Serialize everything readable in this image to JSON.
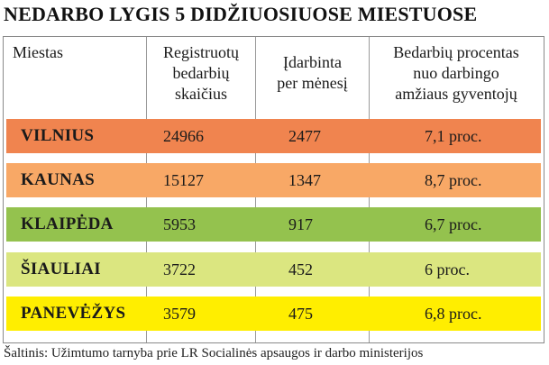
{
  "title": "NEDARBO LYGIS 5 DIDŽIUOSIUOSE MIESTUOSE",
  "headers": {
    "city": "Miestas",
    "registered": [
      "Registruotų",
      "bedarbių",
      "skaičius"
    ],
    "employed": [
      "Įdarbinta",
      "per mėnesį"
    ],
    "percent": [
      "Bedarbių procentas",
      "nuo darbingo",
      "amžiaus gyventojų"
    ]
  },
  "rows": [
    {
      "city": "VILNIUS",
      "registered": "24966",
      "employed": "2477",
      "percent": "7,1 proc.",
      "color": "#f0844f"
    },
    {
      "city": "KAUNAS",
      "registered": "15127",
      "employed": "1347",
      "percent": "8,7 proc.",
      "color": "#f8a866"
    },
    {
      "city": "KLAIPĖDA",
      "registered": "5953",
      "employed": "917",
      "percent": "6,7 proc.",
      "color": "#94c24e"
    },
    {
      "city": "ŠIAULIAI",
      "registered": "3722",
      "employed": "452",
      "percent": "6 proc.",
      "color": "#dbe680"
    },
    {
      "city": "PANEVĖŽYS",
      "registered": "3579",
      "employed": "475",
      "percent": "6,8 proc.",
      "color": "#ffee00"
    }
  ],
  "source": "Šaltinis: Užimtumo tarnyba prie LR Socialinės apsaugos ir darbo ministerijos",
  "chart_data": {
    "type": "table",
    "title": "NEDARBO LYGIS 5 DIDŽIUOSIUOSE MIESTUOSE",
    "columns": [
      "Miestas",
      "Registruotų bedarbių skaičius",
      "Įdarbinta per mėnesį",
      "Bedarbių procentas nuo darbingo amžiaus gyventojų"
    ],
    "categories": [
      "VILNIUS",
      "KAUNAS",
      "KLAIPĖDA",
      "ŠIAULIAI",
      "PANEVĖŽYS"
    ],
    "series": [
      {
        "name": "Registruotų bedarbių skaičius",
        "values": [
          24966,
          15127,
          5953,
          3722,
          3579
        ]
      },
      {
        "name": "Įdarbinta per mėnesį",
        "values": [
          2477,
          1347,
          917,
          452,
          475
        ]
      },
      {
        "name": "Bedarbių procentas nuo darbingo amžiaus gyventojų",
        "values": [
          7.1,
          8.7,
          6.7,
          6.0,
          6.8
        ]
      }
    ]
  }
}
